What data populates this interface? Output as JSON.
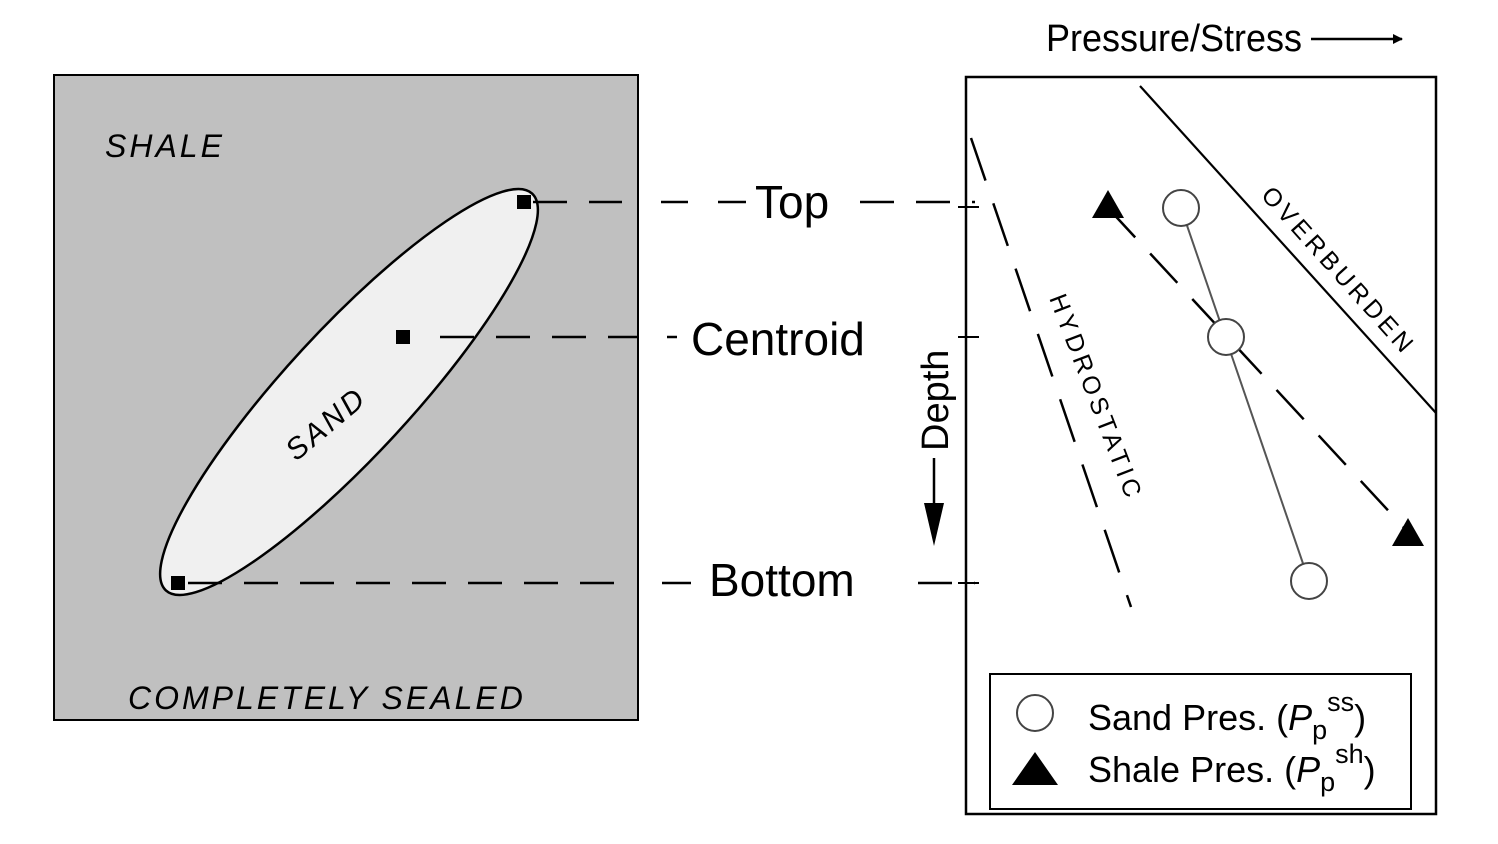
{
  "left_panel": {
    "shale_label": "SHALE",
    "sand_label": "SAND",
    "seal_label": "COMPLETELY SEALED",
    "fill_color": "#c0c0c0",
    "sand_color": "#f0f0f0"
  },
  "levels": {
    "top": "Top",
    "centroid": "Centroid",
    "bottom": "Bottom"
  },
  "right_panel": {
    "x_axis_label": "Pressure/Stress",
    "y_axis_label": "Depth",
    "overburden_label": "OVERBURDEN",
    "hydrostatic_label": "HYDROSTATIC",
    "legend": {
      "sand": {
        "prefix": "Sand Pres. (",
        "symbol": "P",
        "sub": "p",
        "sup": "ss",
        "suffix": ")"
      },
      "shale": {
        "prefix": "Shale Pres. (",
        "symbol": "P",
        "sub": "p",
        "sup": "sh",
        "suffix": ")"
      }
    },
    "marker_colors": {
      "sand_stroke": "#444444",
      "shale_fill": "#000000"
    }
  }
}
